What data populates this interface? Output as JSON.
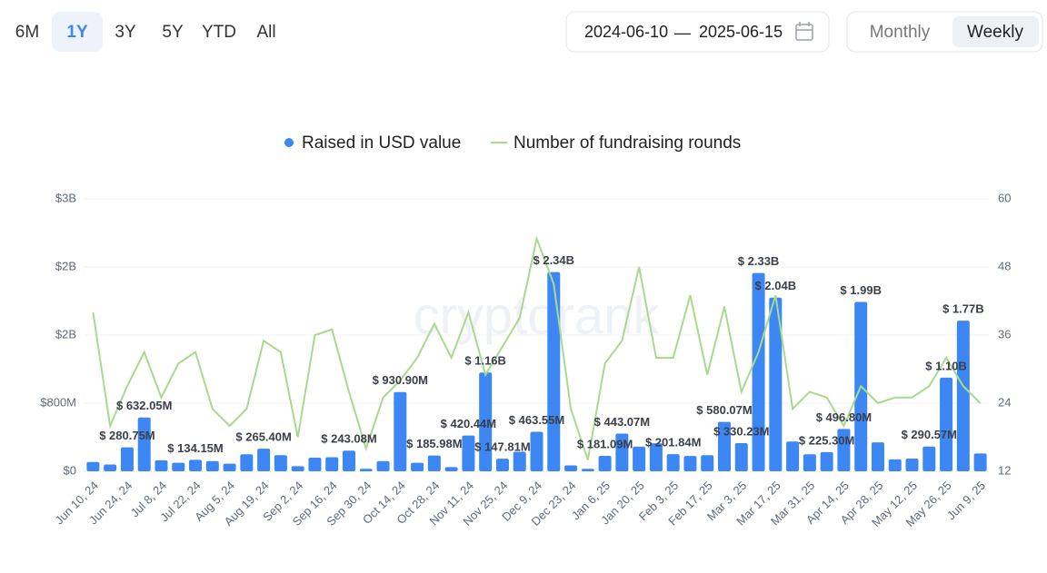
{
  "controls": {
    "periods": [
      "6M",
      "1Y",
      "3Y",
      "5Y",
      "YTD",
      "All"
    ],
    "selected_period": "1Y",
    "date_from": "2024-06-10",
    "date_to": "2025-06-15",
    "date_separator": "—",
    "intervals": [
      "Monthly",
      "Weekly"
    ],
    "selected_interval": "Weekly"
  },
  "chart_data": {
    "type": "bar",
    "watermark": "cryptorank",
    "categories": [
      "Jun 10, 24",
      null,
      "Jun 24, 24",
      null,
      "Jul 8, 24",
      null,
      "Jul 22, 24",
      null,
      "Aug 5, 24",
      null,
      "Aug 19, 24",
      null,
      "Sep 2, 24",
      null,
      "Sep 16, 24",
      null,
      "Sep 30, 24",
      null,
      "Oct 14, 24",
      null,
      "Oct 28, 24",
      null,
      "Nov 11, 24",
      null,
      "Nov 25, 24",
      null,
      "Dec 9, 24",
      null,
      "Dec 23, 24",
      null,
      "Jan 6, 25",
      null,
      "Jan 20, 25",
      null,
      "Feb 3, 25",
      null,
      "Feb 17, 25",
      null,
      "Mar 3, 25",
      null,
      "Mar 17, 25",
      null,
      "Mar 31, 25",
      null,
      "Apr 14, 25",
      null,
      "Apr 28, 25",
      null,
      "May 12, 25",
      null,
      "May 26, 25",
      null,
      "Jun 9, 25"
    ],
    "series": [
      {
        "name": "Raised in USD value",
        "color": "#3d87f5",
        "values": [
          110000000,
          80000000,
          280750000,
          632050000,
          130000000,
          100000000,
          134150000,
          120000000,
          90000000,
          200000000,
          265400000,
          190000000,
          60000000,
          160000000,
          165000000,
          243080000,
          30000000,
          120000000,
          930900000,
          100000000,
          185980000,
          50000000,
          420440000,
          1160000000,
          147810000,
          230000000,
          463550000,
          2340000000,
          70000000,
          30000000,
          181090000,
          443070000,
          290000000,
          330000000,
          201840000,
          180000000,
          190000000,
          580070000,
          330230000,
          2330000000,
          2040000000,
          350000000,
          200000000,
          225300000,
          496800000,
          1990000000,
          340000000,
          140000000,
          150000000,
          290570000,
          1100000000,
          1770000000,
          210000000
        ],
        "value_labels": [
          null,
          null,
          "$ 280.75M",
          "$ 632.05M",
          null,
          null,
          "$ 134.15M",
          null,
          null,
          null,
          "$ 265.40M",
          null,
          null,
          null,
          null,
          "$ 243.08M",
          null,
          null,
          "$ 930.90M",
          null,
          "$ 185.98M",
          null,
          "$ 420.44M",
          "$ 1.16B",
          "$ 147.81M",
          null,
          "$ 463.55M",
          "$ 2.34B",
          null,
          null,
          "$ 181.09M",
          "$ 443.07M",
          null,
          null,
          "$ 201.84M",
          null,
          null,
          "$ 580.07M",
          "$ 330.23M",
          "$ 2.33B",
          "$ 2.04B",
          null,
          null,
          "$ 225.30M",
          "$ 496.80M",
          "$ 1.99B",
          null,
          null,
          null,
          "$ 290.57M",
          "$ 1.10B",
          "$ 1.77B",
          null
        ]
      },
      {
        "name": "Number of fundraising rounds",
        "color": "#a8da8e",
        "type": "line",
        "axis": "y2",
        "values": [
          40,
          20,
          27,
          33,
          25,
          31,
          33,
          23,
          20,
          23,
          35,
          33,
          18,
          36,
          37,
          26,
          16,
          25,
          28,
          32,
          38,
          32,
          40,
          29,
          34,
          39,
          53,
          45,
          23,
          14,
          31,
          35,
          48,
          32,
          32,
          43,
          29,
          41,
          26,
          33,
          43,
          23,
          26,
          25,
          20,
          27,
          24,
          25,
          25,
          27,
          32,
          27,
          24
        ]
      }
    ],
    "ylim": [
      0,
      3200000000
    ],
    "yticks": [
      {
        "value": 0,
        "label": "$0"
      },
      {
        "value": 800000000,
        "label": "$800M"
      },
      {
        "value": 1600000000,
        "label": "$2B"
      },
      {
        "value": 2400000000,
        "label": "$2B"
      },
      {
        "value": 3200000000,
        "label": "$3B"
      }
    ],
    "y2lim": [
      12,
      60
    ],
    "y2ticks": [
      12,
      24,
      36,
      48,
      60
    ],
    "grid": true,
    "legend": "top"
  }
}
